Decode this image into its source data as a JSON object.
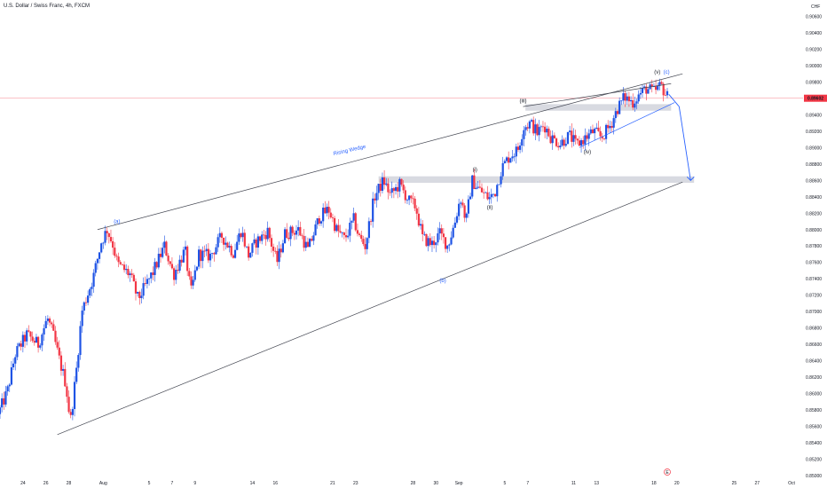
{
  "header": {
    "title": "U.S. Dollar / Swiss Franc, 4h, FXCM",
    "currency": "CHF"
  },
  "price_badge": "0.89602",
  "event_marker": "E",
  "colors": {
    "up": "#1e53e5",
    "down": "#f23645",
    "wick_up": "#1e53e5",
    "wick_down": "#f23645",
    "zone": "#d1d4dc",
    "line": "#434651",
    "arrow": "#2962ff",
    "price_line": "#f23645"
  },
  "chart_data": {
    "type": "candlestick",
    "title": "U.S. Dollar / Swiss Franc, 4h, FXCM",
    "ylabel": "CHF",
    "ylim": [
      0.85,
      0.908
    ],
    "last_price": 0.89602,
    "y_ticks": [
      "0.90600",
      "0.90400",
      "0.90200",
      "0.90000",
      "0.89800",
      "0.89400",
      "0.89200",
      "0.89000",
      "0.88800",
      "0.88600",
      "0.88400",
      "0.88200",
      "0.88000",
      "0.87800",
      "0.87600",
      "0.87400",
      "0.87200",
      "0.87000",
      "0.86800",
      "0.86600",
      "0.86400",
      "0.86200",
      "0.86000",
      "0.85800",
      "0.85600",
      "0.85400",
      "0.85200",
      "0.85000"
    ],
    "y_tick_values": [
      0.906,
      0.904,
      0.902,
      0.9,
      0.898,
      0.894,
      0.892,
      0.89,
      0.888,
      0.886,
      0.884,
      0.882,
      0.88,
      0.878,
      0.876,
      0.874,
      0.872,
      0.87,
      0.868,
      0.866,
      0.864,
      0.862,
      0.86,
      0.858,
      0.856,
      0.854,
      0.852,
      0.85
    ],
    "x_ticks": [
      {
        "label": "24",
        "day": 24
      },
      {
        "label": "26",
        "day": 26
      },
      {
        "label": "28",
        "day": 28
      },
      {
        "label": "Aug",
        "day": 31
      },
      {
        "label": "5",
        "day": 35
      },
      {
        "label": "7",
        "day": 37
      },
      {
        "label": "9",
        "day": 39
      },
      {
        "label": "14",
        "day": 44
      },
      {
        "label": "16",
        "day": 46
      },
      {
        "label": "21",
        "day": 51
      },
      {
        "label": "23",
        "day": 53
      },
      {
        "label": "28",
        "day": 58
      },
      {
        "label": "30",
        "day": 60
      },
      {
        "label": "Sep",
        "day": 62
      },
      {
        "label": "5",
        "day": 66
      },
      {
        "label": "7",
        "day": 68
      },
      {
        "label": "11",
        "day": 72
      },
      {
        "label": "13",
        "day": 74
      },
      {
        "label": "18",
        "day": 79
      },
      {
        "label": "20",
        "day": 81
      },
      {
        "label": "25",
        "day": 86
      },
      {
        "label": "27",
        "day": 88
      },
      {
        "label": "Oct",
        "day": 91
      }
    ],
    "x_range_days": [
      22,
      92
    ],
    "x_unit": "days counted from 1 July",
    "anchors": [
      {
        "day": 22.0,
        "price": 0.8575
      },
      {
        "day": 22.8,
        "price": 0.8602
      },
      {
        "day": 23.5,
        "price": 0.8648
      },
      {
        "day": 24.5,
        "price": 0.8672
      },
      {
        "day": 25.5,
        "price": 0.866
      },
      {
        "day": 26.3,
        "price": 0.8692
      },
      {
        "day": 26.8,
        "price": 0.8672
      },
      {
        "day": 27.4,
        "price": 0.8638
      },
      {
        "day": 27.9,
        "price": 0.8612
      },
      {
        "day": 28.3,
        "price": 0.8565
      },
      {
        "day": 28.8,
        "price": 0.8625
      },
      {
        "day": 29.3,
        "price": 0.87
      },
      {
        "day": 30.3,
        "price": 0.8742
      },
      {
        "day": 31.0,
        "price": 0.8785
      },
      {
        "day": 31.5,
        "price": 0.88
      },
      {
        "day": 32.0,
        "price": 0.8782
      },
      {
        "day": 32.4,
        "price": 0.8758
      },
      {
        "day": 33.5,
        "price": 0.8745
      },
      {
        "day": 34.2,
        "price": 0.8715
      },
      {
        "day": 35.5,
        "price": 0.8748
      },
      {
        "day": 36.5,
        "price": 0.878
      },
      {
        "day": 37.3,
        "price": 0.8745
      },
      {
        "day": 38.3,
        "price": 0.8775
      },
      {
        "day": 38.8,
        "price": 0.8722
      },
      {
        "day": 39.5,
        "price": 0.877
      },
      {
        "day": 40.5,
        "price": 0.8768
      },
      {
        "day": 41.5,
        "price": 0.8792
      },
      {
        "day": 42.5,
        "price": 0.8772
      },
      {
        "day": 43.2,
        "price": 0.88
      },
      {
        "day": 43.8,
        "price": 0.8768
      },
      {
        "day": 44.5,
        "price": 0.8785
      },
      {
        "day": 45.5,
        "price": 0.8798
      },
      {
        "day": 46.3,
        "price": 0.876
      },
      {
        "day": 47.0,
        "price": 0.8795
      },
      {
        "day": 48.2,
        "price": 0.88
      },
      {
        "day": 49.0,
        "price": 0.8775
      },
      {
        "day": 50.0,
        "price": 0.8815
      },
      {
        "day": 50.8,
        "price": 0.8825
      },
      {
        "day": 51.5,
        "price": 0.88
      },
      {
        "day": 52.2,
        "price": 0.8788
      },
      {
        "day": 53.0,
        "price": 0.8812
      },
      {
        "day": 53.5,
        "price": 0.879
      },
      {
        "day": 54.0,
        "price": 0.878
      },
      {
        "day": 54.8,
        "price": 0.884
      },
      {
        "day": 55.6,
        "price": 0.886
      },
      {
        "day": 56.2,
        "price": 0.8842
      },
      {
        "day": 57.0,
        "price": 0.8855
      },
      {
        "day": 57.8,
        "price": 0.8835
      },
      {
        "day": 58.4,
        "price": 0.8828
      },
      {
        "day": 59.0,
        "price": 0.879
      },
      {
        "day": 59.8,
        "price": 0.8782
      },
      {
        "day": 60.5,
        "price": 0.8795
      },
      {
        "day": 61.2,
        "price": 0.878
      },
      {
        "day": 61.8,
        "price": 0.8808
      },
      {
        "day": 62.3,
        "price": 0.884
      },
      {
        "day": 62.8,
        "price": 0.881
      },
      {
        "day": 63.3,
        "price": 0.886
      },
      {
        "day": 64.0,
        "price": 0.8848
      },
      {
        "day": 64.8,
        "price": 0.8838
      },
      {
        "day": 65.3,
        "price": 0.8845
      },
      {
        "day": 65.9,
        "price": 0.8875
      },
      {
        "day": 66.6,
        "price": 0.889
      },
      {
        "day": 67.3,
        "price": 0.8897
      },
      {
        "day": 67.8,
        "price": 0.8925
      },
      {
        "day": 68.4,
        "price": 0.893
      },
      {
        "day": 69.0,
        "price": 0.8918
      },
      {
        "day": 69.6,
        "price": 0.8928
      },
      {
        "day": 70.2,
        "price": 0.8912
      },
      {
        "day": 71.0,
        "price": 0.8905
      },
      {
        "day": 71.8,
        "price": 0.8915
      },
      {
        "day": 72.4,
        "price": 0.8903
      },
      {
        "day": 73.2,
        "price": 0.8912
      },
      {
        "day": 73.9,
        "price": 0.892
      },
      {
        "day": 74.6,
        "price": 0.8912
      },
      {
        "day": 75.4,
        "price": 0.8928
      },
      {
        "day": 76.0,
        "price": 0.8948
      },
      {
        "day": 76.6,
        "price": 0.8962
      },
      {
        "day": 77.3,
        "price": 0.8955
      },
      {
        "day": 77.9,
        "price": 0.8965
      },
      {
        "day": 78.5,
        "price": 0.8972
      },
      {
        "day": 79.2,
        "price": 0.8968
      },
      {
        "day": 79.8,
        "price": 0.8976
      },
      {
        "day": 80.3,
        "price": 0.8962
      }
    ],
    "levels": [
      {
        "name": "resistance-zone-upper",
        "day_from": 67.8,
        "day_to": 80.5,
        "price_from": 0.8945,
        "price_to": 0.8953
      },
      {
        "name": "support-zone-lower",
        "day_from": 55.0,
        "day_to": 82.5,
        "price_from": 0.8857,
        "price_to": 0.8865
      }
    ],
    "trendlines": [
      {
        "name": "wedge-upper",
        "from": {
          "day": 30.5,
          "price": 0.88
        },
        "to": {
          "day": 81.5,
          "price": 0.899
        }
      },
      {
        "name": "wedge-lower",
        "from": {
          "day": 27.0,
          "price": 0.855
        },
        "to": {
          "day": 81.5,
          "price": 0.8858
        }
      },
      {
        "name": "inner-support",
        "from": {
          "day": 72.5,
          "price": 0.89
        },
        "to": {
          "day": 80.8,
          "price": 0.8955
        }
      },
      {
        "name": "wave-iii-to-c",
        "from": {
          "day": 67.6,
          "price": 0.895
        },
        "to": {
          "day": 80.5,
          "price": 0.8978
        }
      }
    ],
    "projection": [
      {
        "day": 80.3,
        "price": 0.8965
      },
      {
        "day": 81.2,
        "price": 0.895
      },
      {
        "day": 82.2,
        "price": 0.886
      }
    ],
    "annotations": [
      {
        "text": "(a)",
        "day": 32.2,
        "price": 0.8808,
        "color": "#2962ff"
      },
      {
        "text": "(b)",
        "day": 60.6,
        "price": 0.8736,
        "color": "#2962ff"
      },
      {
        "text": "(c)",
        "day": 80.1,
        "price": 0.899,
        "color": "#2962ff"
      },
      {
        "text": "(i)",
        "day": 63.4,
        "price": 0.8871,
        "color": "#131722"
      },
      {
        "text": "(ii)",
        "day": 64.7,
        "price": 0.8825,
        "color": "#131722"
      },
      {
        "text": "(iii)",
        "day": 67.6,
        "price": 0.8955,
        "color": "#131722"
      },
      {
        "text": "(iv)",
        "day": 73.2,
        "price": 0.8893,
        "color": "#131722"
      },
      {
        "text": "(v)",
        "day": 79.3,
        "price": 0.899,
        "color": "#131722"
      }
    ],
    "label": {
      "text": "Rising Wedge",
      "day": 52.5,
      "price": 0.8895,
      "angle": -13
    }
  }
}
